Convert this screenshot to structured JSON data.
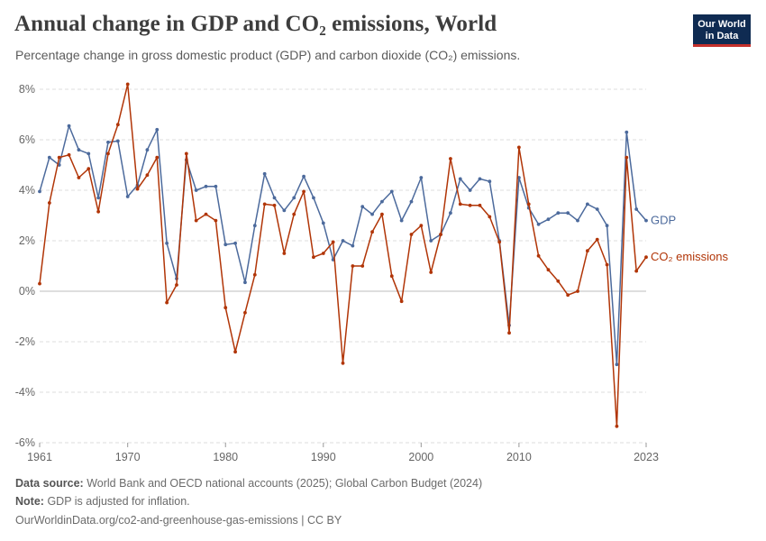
{
  "header": {
    "title": "Annual change in GDP and CO₂ emissions, World",
    "subtitle": "Percentage change in gross domestic product (GDP) and carbon dioxide (CO₂) emissions."
  },
  "logo": {
    "line1": "Our World",
    "line2": "in Data"
  },
  "footer": {
    "source_label": "Data source:",
    "source_text": "World Bank and OECD national accounts (2025); Global Carbon Budget (2024)",
    "note_label": "Note:",
    "note_text": "GDP is adjusted for inflation.",
    "url": "OurWorldinData.org/co2-and-greenhouse-gas-emissions | CC BY"
  },
  "colors": {
    "gdp": "#4c6a9c",
    "co2": "#b13507",
    "grid": "#dddddd",
    "zero": "#bdbdbd",
    "text": "#666666"
  },
  "chart_data": {
    "type": "line",
    "title": "Annual change in GDP and CO₂ emissions, World",
    "xlim": [
      1961,
      2023
    ],
    "ylim": [
      -6,
      8
    ],
    "x_ticks": [
      1961,
      1970,
      1980,
      1990,
      2000,
      2010,
      2023
    ],
    "y_ticks": [
      {
        "value": 8,
        "label": "8%"
      },
      {
        "value": 6,
        "label": "6%"
      },
      {
        "value": 4,
        "label": "4%"
      },
      {
        "value": 2,
        "label": "2%"
      },
      {
        "value": 0,
        "label": "0%"
      },
      {
        "value": -2,
        "label": "-2%"
      },
      {
        "value": -4,
        "label": "-4%"
      },
      {
        "value": -6,
        "label": "-6%"
      }
    ],
    "grid": true,
    "legend": "labels at line ends (right)",
    "x": [
      1961,
      1962,
      1963,
      1964,
      1965,
      1966,
      1967,
      1968,
      1969,
      1970,
      1971,
      1972,
      1973,
      1974,
      1975,
      1976,
      1977,
      1978,
      1979,
      1980,
      1981,
      1982,
      1983,
      1984,
      1985,
      1986,
      1987,
      1988,
      1989,
      1990,
      1991,
      1992,
      1993,
      1994,
      1995,
      1996,
      1997,
      1998,
      1999,
      2000,
      2001,
      2002,
      2003,
      2004,
      2005,
      2006,
      2007,
      2008,
      2009,
      2010,
      2011,
      2012,
      2013,
      2014,
      2015,
      2016,
      2017,
      2018,
      2019,
      2020,
      2021,
      2022,
      2023
    ],
    "series": [
      {
        "name": "GDP",
        "values": [
          3.95,
          5.3,
          5.0,
          6.55,
          5.6,
          5.45,
          3.7,
          5.9,
          5.95,
          3.75,
          4.2,
          5.6,
          6.4,
          1.9,
          0.5,
          5.2,
          4.0,
          4.15,
          4.15,
          1.85,
          1.9,
          0.35,
          2.6,
          4.65,
          3.7,
          3.2,
          3.7,
          4.55,
          3.7,
          2.7,
          1.25,
          2.0,
          1.8,
          3.35,
          3.05,
          3.55,
          3.95,
          2.8,
          3.55,
          4.5,
          2.0,
          2.25,
          3.1,
          4.45,
          4.0,
          4.45,
          4.35,
          2.0,
          -1.35,
          4.5,
          3.3,
          2.65,
          2.85,
          3.1,
          3.1,
          2.8,
          3.45,
          3.25,
          2.6,
          -2.9,
          6.3,
          3.25,
          2.8
        ]
      },
      {
        "name": "CO₂ emissions",
        "values": [
          0.3,
          3.5,
          5.3,
          5.4,
          4.5,
          4.85,
          3.15,
          5.45,
          6.6,
          8.2,
          4.05,
          4.6,
          5.3,
          -0.45,
          0.25,
          5.45,
          2.8,
          3.05,
          2.8,
          -0.65,
          -2.4,
          -0.85,
          0.65,
          3.45,
          3.4,
          1.5,
          3.05,
          3.95,
          1.35,
          1.5,
          1.95,
          -2.85,
          1.0,
          1.0,
          2.35,
          3.05,
          0.6,
          -0.4,
          2.25,
          2.6,
          0.75,
          2.25,
          5.25,
          3.45,
          3.4,
          3.4,
          2.95,
          1.95,
          -1.65,
          5.7,
          3.45,
          1.4,
          0.85,
          0.4,
          -0.15,
          0.0,
          1.6,
          2.05,
          1.05,
          -5.35,
          5.3,
          0.8,
          1.35
        ]
      }
    ]
  }
}
